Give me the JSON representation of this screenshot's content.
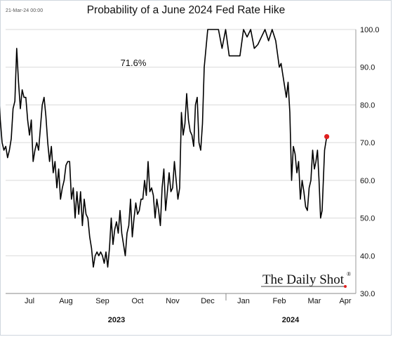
{
  "header": {
    "timestamp": "21-Mar-24 00:00"
  },
  "brand": {
    "name": "The Daily Shot",
    "mark": "®"
  },
  "colors": {
    "line": "#000000",
    "marker": "#e02020",
    "grid": "#d9d9d9"
  },
  "chart_data": {
    "type": "line",
    "title": "Probability of a June 2024 Fed Rate Hike",
    "annotation": "71.6%",
    "y_axis_side": "right",
    "ylim": [
      30,
      100
    ],
    "yticks": [
      "30.0",
      "40.0",
      "50.0",
      "60.0",
      "70.0",
      "80.0",
      "90.0",
      "100.0"
    ],
    "x_month_labels": [
      "Jul",
      "Aug",
      "Sep",
      "Oct",
      "Nov",
      "Dec",
      "Jan",
      "Feb",
      "Mar",
      "Apr"
    ],
    "year_labels": [
      "2023",
      "2024"
    ],
    "grid": "horizontal",
    "last_value": 71.6,
    "series": [
      {
        "x_month_index": [
          -0.9,
          -0.85,
          -0.8,
          -0.75,
          -0.7,
          -0.65,
          -0.6,
          -0.55,
          -0.5,
          -0.45,
          -0.4,
          -0.35,
          -0.3,
          -0.25,
          -0.2,
          -0.15,
          -0.1,
          -0.05,
          0.0,
          0.05,
          0.1,
          0.15,
          0.2,
          0.25,
          0.3,
          0.35,
          0.4,
          0.45,
          0.5,
          0.55,
          0.6,
          0.65,
          0.7,
          0.75,
          0.8,
          0.85,
          0.9,
          0.95,
          1.0,
          1.05,
          1.1,
          1.15,
          1.2,
          1.25,
          1.3,
          1.35,
          1.4,
          1.45,
          1.5,
          1.55,
          1.6,
          1.65,
          1.7,
          1.75,
          1.8,
          1.85,
          1.9,
          1.95,
          2.0,
          2.05,
          2.1,
          2.15,
          2.2,
          2.25,
          2.3,
          2.35,
          2.4,
          2.45,
          2.5,
          2.55,
          2.6,
          2.65,
          2.7,
          2.75,
          2.8,
          2.85,
          2.9,
          2.95,
          3.0,
          3.05,
          3.1,
          3.15,
          3.2,
          3.25,
          3.3,
          3.35,
          3.4,
          3.45,
          3.5,
          3.55,
          3.6,
          3.65,
          3.7,
          3.75,
          3.8,
          3.85,
          3.9,
          3.95,
          4.0,
          4.05,
          4.1,
          4.15,
          4.2,
          4.25,
          4.3,
          4.35,
          4.4,
          4.45,
          4.5,
          4.55,
          4.6,
          4.65,
          4.7,
          4.75,
          4.8,
          4.85,
          4.9,
          4.95,
          5.0,
          5.1,
          5.2,
          5.3,
          5.4,
          5.5,
          5.6,
          5.7,
          5.8,
          5.9,
          6.0,
          6.1,
          6.2,
          6.3,
          6.4,
          6.5,
          6.6,
          6.7,
          6.8,
          6.9,
          7.0,
          7.05,
          7.1,
          7.15,
          7.2,
          7.25,
          7.3,
          7.35,
          7.4,
          7.45,
          7.5,
          7.55,
          7.6,
          7.65,
          7.7,
          7.75,
          7.8,
          7.85,
          7.9,
          7.95,
          8.0,
          8.05,
          8.1,
          8.15,
          8.2,
          8.25,
          8.33,
          8.4
        ],
        "values": [
          80,
          84,
          76,
          70,
          68,
          69,
          66,
          68,
          71,
          79,
          81,
          95,
          86,
          79,
          84,
          82,
          82,
          76,
          72,
          76,
          65,
          68,
          70,
          68,
          74,
          80,
          82,
          77,
          70,
          65,
          69,
          62,
          65,
          58,
          63,
          55,
          58,
          60,
          64,
          65,
          65,
          55,
          58,
          50,
          57,
          51,
          57,
          48,
          55,
          51,
          50,
          45,
          42,
          37,
          40,
          41,
          40,
          41,
          40,
          38,
          41,
          37,
          42,
          50,
          43,
          47,
          49,
          46,
          52,
          46,
          43,
          40,
          46,
          48,
          55,
          45,
          50,
          54,
          51,
          52,
          55,
          55,
          60,
          56,
          65,
          57,
          58,
          56,
          50,
          55,
          52,
          48,
          58,
          63,
          52,
          57,
          62,
          57,
          58,
          65,
          60,
          55,
          58,
          78,
          72,
          75,
          83,
          76,
          73,
          72,
          69,
          80,
          82,
          70,
          68,
          75,
          90,
          95,
          100,
          100,
          100,
          100,
          95,
          100,
          93,
          93,
          93,
          93,
          100,
          98,
          100,
          95,
          96,
          98,
          100,
          97,
          100,
          97,
          90,
          91,
          88,
          85,
          82,
          86,
          78,
          60,
          69,
          67,
          62,
          65,
          55,
          60,
          57,
          53,
          52,
          58,
          60,
          68,
          63,
          65,
          68,
          60,
          50,
          52,
          68,
          71.6
        ]
      }
    ]
  }
}
